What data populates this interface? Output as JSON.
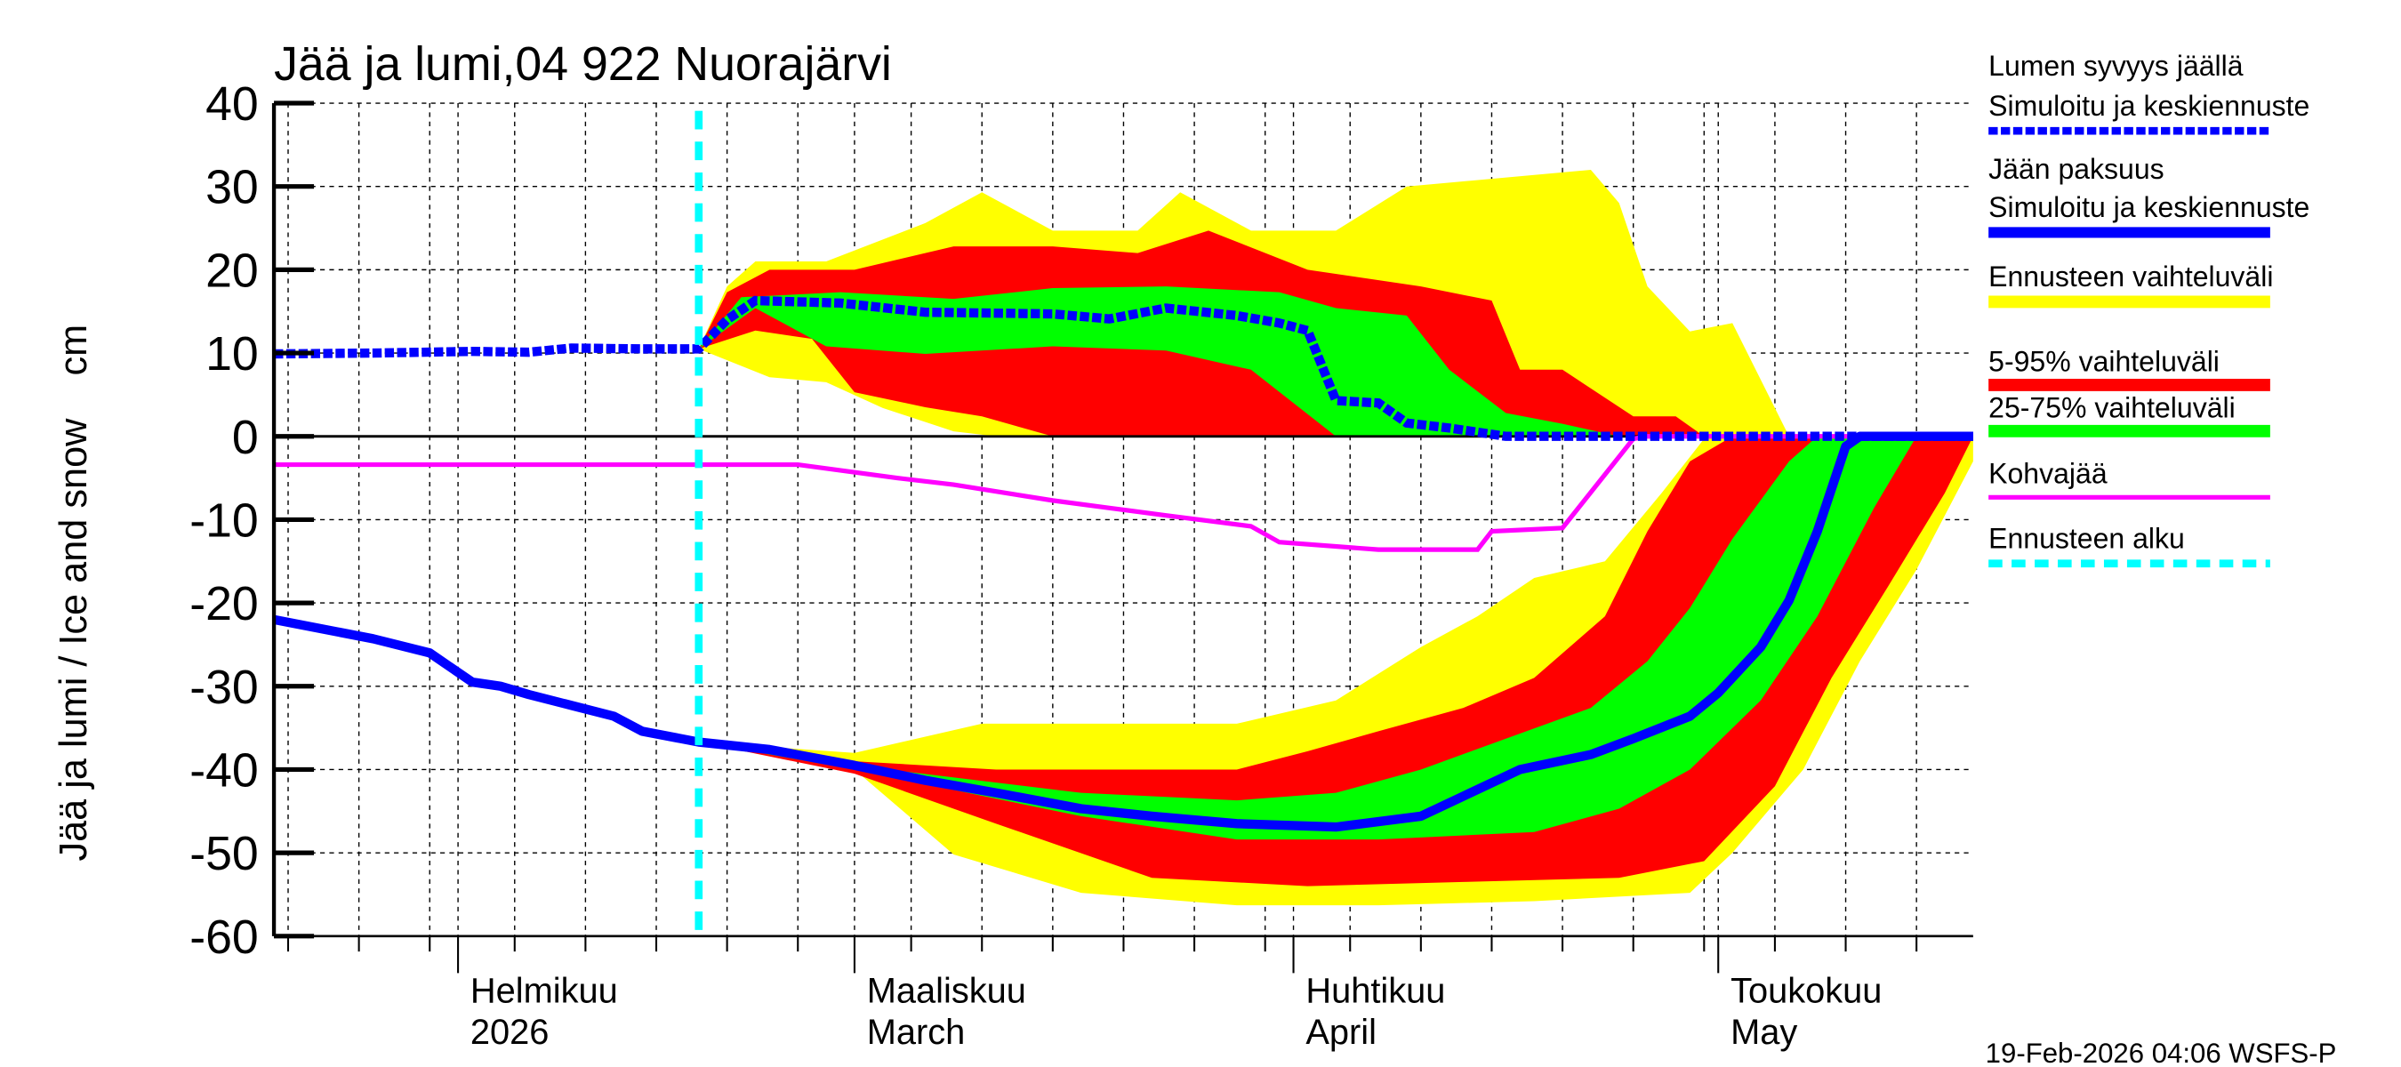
{
  "chart_data": {
    "type": "area",
    "title": "Jää ja lumi,04 922 Nuorajärvi",
    "ylabel": "Jää ja lumi / Ice and snow    cm",
    "xlabel": "",
    "ylim": [
      -60,
      40
    ],
    "yticks": [
      "40",
      "30",
      "20",
      "10",
      "0",
      "-10",
      "-20",
      "-30",
      "-40",
      "-50",
      "-60"
    ],
    "xlim": [
      "2026-01-19",
      "2026-05-19"
    ],
    "grid": true,
    "legend_position": "right",
    "month_labels": [
      {
        "date": "2026-02-01",
        "fi": "Helmikuu",
        "en": "2026"
      },
      {
        "date": "2026-03-01",
        "fi": "Maaliskuu",
        "en": "March"
      },
      {
        "date": "2026-04-01",
        "fi": "Huhtikuu",
        "en": "April"
      },
      {
        "date": "2026-05-01",
        "fi": "Toukokuu",
        "en": "May"
      }
    ],
    "forecast_start": "2026-02-18",
    "timestamp": "19-Feb-2026 04:06 WSFS-P",
    "legend": [
      {
        "label": "Lumen syvyys jäällä",
        "label2": "Simuloitu ja keskiennuste",
        "color": "#0000ff",
        "style": "dotted"
      },
      {
        "label": "Jään paksuus",
        "label2": "Simuloitu ja keskiennuste",
        "color": "#0000ff",
        "style": "solid"
      },
      {
        "label": "Ennusteen vaihteluväli",
        "color": "#ffff00",
        "style": "band"
      },
      {
        "label": "5-95% vaihteluväli",
        "color": "#ff0000",
        "style": "band"
      },
      {
        "label": "25-75% vaihteluväli",
        "color": "#00ff00",
        "style": "band"
      },
      {
        "label": "Kohvajää",
        "color": "#ff00ff",
        "style": "solid"
      },
      {
        "label": "Ennusteen alku",
        "color": "#00ffff",
        "style": "dashed"
      }
    ],
    "bands": {
      "snow_range": {
        "upper": [
          [
            "2026-02-18",
            10.5
          ],
          [
            "2026-02-20",
            18
          ],
          [
            "2026-02-22",
            21
          ],
          [
            "2026-02-27",
            21
          ],
          [
            "2026-03-06",
            25.6
          ],
          [
            "2026-03-10",
            29.3
          ],
          [
            "2026-03-15",
            24.7
          ],
          [
            "2026-03-21",
            24.7
          ],
          [
            "2026-03-24",
            29.3
          ],
          [
            "2026-03-29",
            24.7
          ],
          [
            "2026-04-04",
            24.7
          ],
          [
            "2026-04-09",
            30
          ],
          [
            "2026-04-22",
            32
          ],
          [
            "2026-04-24",
            28
          ],
          [
            "2026-04-26",
            18
          ],
          [
            "2026-04-29",
            12.6
          ],
          [
            "2026-05-02",
            13.6
          ],
          [
            "2026-05-05",
            3.4
          ],
          [
            "2026-05-06",
            0
          ],
          [
            "2026-05-19",
            0
          ]
        ],
        "lower": [
          [
            "2026-02-18",
            10.5
          ],
          [
            "2026-02-23",
            7.1
          ],
          [
            "2026-02-27",
            6.5
          ],
          [
            "2026-03-03",
            3.4
          ],
          [
            "2026-03-08",
            0.6
          ],
          [
            "2026-03-11",
            0
          ],
          [
            "2026-05-19",
            0
          ]
        ]
      },
      "snow_5_95": {
        "upper": [
          [
            "2026-02-18",
            10.5
          ],
          [
            "2026-02-20",
            17.3
          ],
          [
            "2026-02-23",
            20
          ],
          [
            "2026-03-01",
            20
          ],
          [
            "2026-03-08",
            22.8
          ],
          [
            "2026-03-15",
            22.8
          ],
          [
            "2026-03-21",
            22
          ],
          [
            "2026-03-26",
            24.7
          ],
          [
            "2026-04-02",
            20
          ],
          [
            "2026-04-10",
            18
          ],
          [
            "2026-04-15",
            16.3
          ],
          [
            "2026-04-17",
            8
          ],
          [
            "2026-04-20",
            8
          ],
          [
            "2026-04-25",
            2.4
          ],
          [
            "2026-04-28",
            2.4
          ],
          [
            "2026-04-30",
            0
          ],
          [
            "2026-05-19",
            0
          ]
        ],
        "lower": [
          [
            "2026-02-18",
            10.5
          ],
          [
            "2026-02-22",
            12.7
          ],
          [
            "2026-02-26",
            11.7
          ],
          [
            "2026-03-01",
            5.3
          ],
          [
            "2026-03-06",
            3.5
          ],
          [
            "2026-03-10",
            2.4
          ],
          [
            "2026-03-15",
            0
          ],
          [
            "2026-05-19",
            0
          ]
        ]
      },
      "snow_25_75": {
        "upper": [
          [
            "2026-02-18",
            10.5
          ],
          [
            "2026-02-21",
            16.7
          ],
          [
            "2026-02-28",
            17.3
          ],
          [
            "2026-03-08",
            16.5
          ],
          [
            "2026-03-15",
            17.8
          ],
          [
            "2026-03-23",
            18
          ],
          [
            "2026-03-31",
            17.3
          ],
          [
            "2026-04-04",
            15.4
          ],
          [
            "2026-04-09",
            14.5
          ],
          [
            "2026-04-12",
            8
          ],
          [
            "2026-04-16",
            2.8
          ],
          [
            "2026-04-20",
            1.5
          ],
          [
            "2026-04-24",
            0
          ],
          [
            "2026-05-19",
            0
          ]
        ],
        "lower": [
          [
            "2026-02-18",
            10.5
          ],
          [
            "2026-02-22",
            15.4
          ],
          [
            "2026-02-27",
            10.8
          ],
          [
            "2026-03-06",
            9.9
          ],
          [
            "2026-03-15",
            10.8
          ],
          [
            "2026-03-23",
            10.3
          ],
          [
            "2026-03-29",
            8
          ],
          [
            "2026-04-04",
            0
          ],
          [
            "2026-05-19",
            0
          ]
        ]
      },
      "ice_range": {
        "upper": [
          [
            "2026-02-18",
            -36.7
          ],
          [
            "2026-03-01",
            -38
          ],
          [
            "2026-03-10",
            -34.5
          ],
          [
            "2026-03-28",
            -34.5
          ],
          [
            "2026-04-04",
            -31.7
          ],
          [
            "2026-04-10",
            -25.3
          ],
          [
            "2026-04-14",
            -21.6
          ],
          [
            "2026-04-18",
            -17
          ],
          [
            "2026-04-23",
            -15
          ],
          [
            "2026-04-27",
            -6.8
          ],
          [
            "2026-04-30",
            -0.3
          ],
          [
            "2026-05-02",
            0
          ],
          [
            "2026-05-19",
            0
          ]
        ],
        "lower": [
          [
            "2026-02-18",
            -36.7
          ],
          [
            "2026-03-01",
            -40
          ],
          [
            "2026-03-08",
            -50.2
          ],
          [
            "2026-03-17",
            -54.8
          ],
          [
            "2026-03-28",
            -56.3
          ],
          [
            "2026-04-07",
            -56.3
          ],
          [
            "2026-04-18",
            -55.8
          ],
          [
            "2026-04-29",
            -54.8
          ],
          [
            "2026-05-02",
            -50
          ],
          [
            "2026-05-07",
            -40
          ],
          [
            "2026-05-11",
            -27
          ],
          [
            "2026-05-15",
            -16
          ],
          [
            "2026-05-19",
            -3
          ]
        ]
      },
      "ice_5_95": {
        "upper": [
          [
            "2026-02-18",
            -36.7
          ],
          [
            "2026-03-01",
            -39
          ],
          [
            "2026-03-11",
            -40
          ],
          [
            "2026-03-28",
            -40
          ],
          [
            "2026-04-02",
            -37.8
          ],
          [
            "2026-04-07",
            -35.4
          ],
          [
            "2026-04-13",
            -32.6
          ],
          [
            "2026-04-18",
            -29
          ],
          [
            "2026-04-23",
            -21.6
          ],
          [
            "2026-04-26",
            -11.4
          ],
          [
            "2026-04-29",
            -3
          ],
          [
            "2026-05-02",
            0
          ],
          [
            "2026-05-19",
            0
          ]
        ],
        "lower": [
          [
            "2026-02-18",
            -36.7
          ],
          [
            "2026-03-01",
            -40.5
          ],
          [
            "2026-03-11",
            -46.5
          ],
          [
            "2026-03-22",
            -53
          ],
          [
            "2026-04-02",
            -54
          ],
          [
            "2026-04-13",
            -53.5
          ],
          [
            "2026-04-24",
            -53
          ],
          [
            "2026-04-30",
            -51
          ],
          [
            "2026-05-05",
            -42
          ],
          [
            "2026-05-09",
            -29
          ],
          [
            "2026-05-13",
            -18
          ],
          [
            "2026-05-17",
            -6.8
          ],
          [
            "2026-05-19",
            0
          ]
        ]
      },
      "ice_25_75": {
        "upper": [
          [
            "2026-02-18",
            -36.7
          ],
          [
            "2026-03-01",
            -39.5
          ],
          [
            "2026-03-17",
            -42.8
          ],
          [
            "2026-03-28",
            -43.7
          ],
          [
            "2026-04-04",
            -42.8
          ],
          [
            "2026-04-10",
            -40
          ],
          [
            "2026-04-16",
            -36.3
          ],
          [
            "2026-04-22",
            -32.6
          ],
          [
            "2026-04-26",
            -27
          ],
          [
            "2026-04-29",
            -20.6
          ],
          [
            "2026-05-02",
            -12.3
          ],
          [
            "2026-05-06",
            -3
          ],
          [
            "2026-05-08",
            0
          ],
          [
            "2026-05-19",
            0
          ]
        ],
        "lower": [
          [
            "2026-02-18",
            -36.7
          ],
          [
            "2026-03-01",
            -40
          ],
          [
            "2026-03-17",
            -45.6
          ],
          [
            "2026-03-28",
            -48.4
          ],
          [
            "2026-04-07",
            -48.4
          ],
          [
            "2026-04-18",
            -47.5
          ],
          [
            "2026-04-24",
            -44.7
          ],
          [
            "2026-04-29",
            -40
          ],
          [
            "2026-05-04",
            -31.7
          ],
          [
            "2026-05-08",
            -21.6
          ],
          [
            "2026-05-12",
            -8.6
          ],
          [
            "2026-05-15",
            0
          ],
          [
            "2026-05-19",
            0
          ]
        ]
      }
    },
    "series": {
      "snow_depth": [
        [
          "2026-01-19",
          9.9
        ],
        [
          "2026-01-26",
          10
        ],
        [
          "2026-02-02",
          10.2
        ],
        [
          "2026-02-06",
          10.1
        ],
        [
          "2026-02-09",
          10.6
        ],
        [
          "2026-02-14",
          10.5
        ],
        [
          "2026-02-18",
          10.5
        ],
        [
          "2026-02-20",
          14
        ],
        [
          "2026-02-22",
          16.3
        ],
        [
          "2026-02-28",
          16
        ],
        [
          "2026-03-06",
          14.9
        ],
        [
          "2026-03-15",
          14.7
        ],
        [
          "2026-03-19",
          14.1
        ],
        [
          "2026-03-23",
          15.4
        ],
        [
          "2026-03-28",
          14.5
        ],
        [
          "2026-03-31",
          13.6
        ],
        [
          "2026-04-02",
          12.7
        ],
        [
          "2026-04-04",
          4.3
        ],
        [
          "2026-04-07",
          4
        ],
        [
          "2026-04-09",
          1.6
        ],
        [
          "2026-04-12",
          1
        ],
        [
          "2026-04-16",
          0
        ],
        [
          "2026-05-19",
          0
        ]
      ],
      "ice_thickness": [
        [
          "2026-01-19",
          -22
        ],
        [
          "2026-01-26",
          -24.3
        ],
        [
          "2026-01-30",
          -26
        ],
        [
          "2026-02-02",
          -29.5
        ],
        [
          "2026-02-04",
          -30
        ],
        [
          "2026-02-06",
          -31
        ],
        [
          "2026-02-09",
          -32.3
        ],
        [
          "2026-02-12",
          -33.6
        ],
        [
          "2026-02-14",
          -35.4
        ],
        [
          "2026-02-18",
          -36.7
        ],
        [
          "2026-02-23",
          -37.6
        ],
        [
          "2026-03-01",
          -39.5
        ],
        [
          "2026-03-06",
          -41.3
        ],
        [
          "2026-03-11",
          -42.8
        ],
        [
          "2026-03-17",
          -44.7
        ],
        [
          "2026-03-22",
          -45.6
        ],
        [
          "2026-03-28",
          -46.5
        ],
        [
          "2026-04-04",
          -46.9
        ],
        [
          "2026-04-10",
          -45.6
        ],
        [
          "2026-04-13",
          -43.2
        ],
        [
          "2026-04-17",
          -40
        ],
        [
          "2026-04-22",
          -38.2
        ],
        [
          "2026-04-25",
          -36.3
        ],
        [
          "2026-04-29",
          -33.6
        ],
        [
          "2026-05-01",
          -30.8
        ],
        [
          "2026-05-04",
          -25.3
        ],
        [
          "2026-05-06",
          -19.7
        ],
        [
          "2026-05-08",
          -11.4
        ],
        [
          "2026-05-10",
          -1.2
        ],
        [
          "2026-05-11",
          0
        ],
        [
          "2026-05-19",
          0
        ]
      ],
      "slush_ice": [
        [
          "2026-01-19",
          -3.4
        ],
        [
          "2026-02-25",
          -3.4
        ],
        [
          "2026-03-04",
          -5
        ],
        [
          "2026-03-08",
          -5.8
        ],
        [
          "2026-03-15",
          -7.7
        ],
        [
          "2026-03-19",
          -8.6
        ],
        [
          "2026-03-23",
          -9.5
        ],
        [
          "2026-03-29",
          -10.8
        ],
        [
          "2026-03-31",
          -12.7
        ],
        [
          "2026-04-07",
          -13.6
        ],
        [
          "2026-04-14",
          -13.6
        ],
        [
          "2026-04-15",
          -11.4
        ],
        [
          "2026-04-20",
          -11
        ],
        [
          "2026-04-25",
          -0.3
        ],
        [
          "2026-04-26",
          0
        ],
        [
          "2026-05-19",
          0
        ]
      ]
    }
  }
}
